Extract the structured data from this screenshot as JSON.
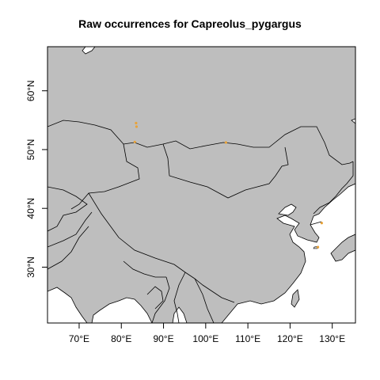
{
  "title": "Raw occurrences for Capreolus_pygargus",
  "colors": {
    "land": "#bebebe",
    "sea": "#ffffff",
    "border": "#000000",
    "occurrence": "#e8a33a"
  },
  "x_axis": {
    "range_deg": [
      62.5,
      135.5
    ],
    "ticks": [
      {
        "value": 70,
        "label": "70°E"
      },
      {
        "value": 80,
        "label": "80°E"
      },
      {
        "value": 90,
        "label": "90°E"
      },
      {
        "value": 100,
        "label": "100°E"
      },
      {
        "value": 110,
        "label": "110°E"
      },
      {
        "value": 120,
        "label": "120°E"
      },
      {
        "value": 130,
        "label": "130°E"
      }
    ]
  },
  "y_axis": {
    "range_deg": [
      20.5,
      67.5
    ],
    "ticks": [
      {
        "value": 30,
        "label": "30°N"
      },
      {
        "value": 40,
        "label": "40°N"
      },
      {
        "value": 50,
        "label": "50°N"
      },
      {
        "value": 60,
        "label": "60°N"
      }
    ]
  },
  "occurrences": [
    {
      "lon": 83.5,
      "lat": 54.5
    },
    {
      "lon": 83.6,
      "lat": 53.9
    },
    {
      "lon": 83.2,
      "lat": 51.3
    },
    {
      "lon": 104.8,
      "lat": 51.2
    },
    {
      "lon": 127.5,
      "lat": 37.5
    },
    {
      "lon": 126.6,
      "lat": 33.4
    }
  ]
}
